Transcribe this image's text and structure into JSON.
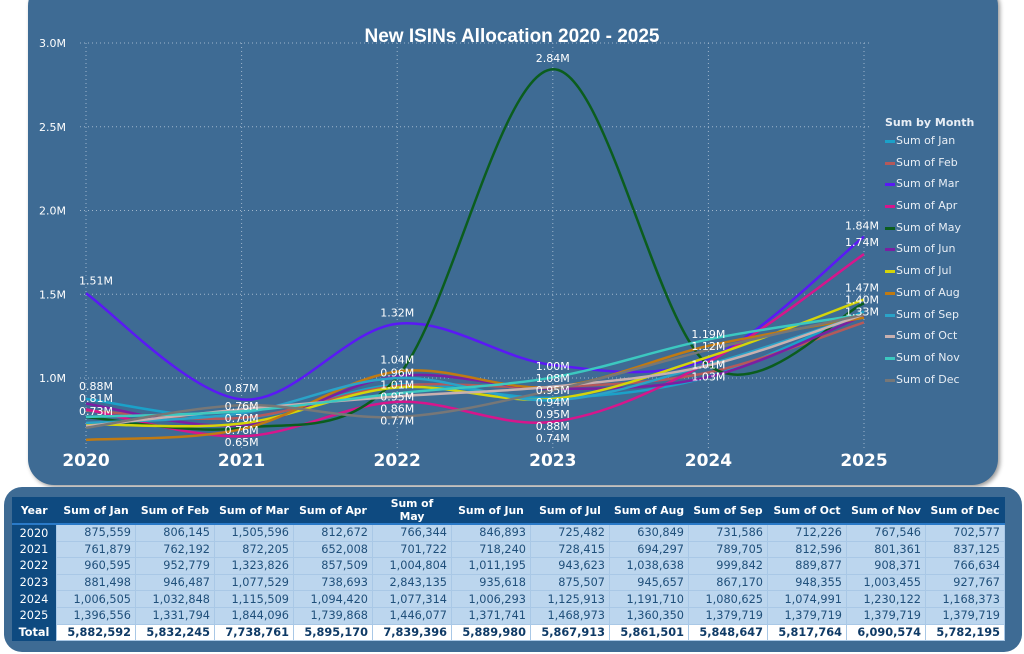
{
  "chart_data": {
    "type": "line",
    "title": "New ISINs Allocation 2020 - 2025",
    "x": [
      "2020",
      "2021",
      "2022",
      "2023",
      "2024",
      "2025"
    ],
    "ylim": [
      0.6,
      3.0
    ],
    "yticks": [
      "1.0M",
      "1.5M",
      "2.0M",
      "2.5M",
      "3.0M"
    ],
    "ytick_values": [
      1.0,
      1.5,
      2.0,
      2.5,
      3.0
    ],
    "grid": true,
    "legend_title": "Sum by Month",
    "legend_position": "right",
    "series": [
      {
        "name": "Sum of Jan",
        "color": "#1ba1c9",
        "values": [
          875559,
          761879,
          960595,
          881498,
          1006505,
          1396556
        ]
      },
      {
        "name": "Sum of Feb",
        "color": "#b4595a",
        "values": [
          806145,
          762192,
          952779,
          946487,
          1032848,
          1331794
        ]
      },
      {
        "name": "Sum of Mar",
        "color": "#5a19f5",
        "values": [
          1505596,
          872205,
          1323826,
          1077529,
          1115509,
          1844096
        ]
      },
      {
        "name": "Sum of Apr",
        "color": "#d6168c",
        "values": [
          812672,
          652008,
          857509,
          738693,
          1094420,
          1739868
        ]
      },
      {
        "name": "Sum of May",
        "color": "#0b5d1e",
        "values": [
          766344,
          701722,
          1004804,
          2843135,
          1077314,
          1446077
        ]
      },
      {
        "name": "Sum of Jun",
        "color": "#7b1fa2",
        "values": [
          846893,
          718240,
          1011195,
          935618,
          1006293,
          1371741
        ]
      },
      {
        "name": "Sum of Jul",
        "color": "#d4d40a",
        "values": [
          725482,
          728415,
          943623,
          875507,
          1125913,
          1468973
        ]
      },
      {
        "name": "Sum of Aug",
        "color": "#c07a12",
        "values": [
          630849,
          694297,
          1038638,
          945657,
          1191710,
          1360350
        ]
      },
      {
        "name": "Sum of Sep",
        "color": "#2aa3c8",
        "values": [
          731586,
          789705,
          999842,
          867170,
          1080625,
          1379719
        ]
      },
      {
        "name": "Sum of Oct",
        "color": "#c8b0b0",
        "values": [
          712226,
          812596,
          889877,
          948355,
          1074991,
          1379719
        ]
      },
      {
        "name": "Sum of Nov",
        "color": "#3cc8c0",
        "values": [
          767546,
          801361,
          908371,
          1003455,
          1230122,
          1379719
        ]
      },
      {
        "name": "Sum of Dec",
        "color": "#777777",
        "values": [
          702577,
          837125,
          766634,
          927767,
          1168373,
          1379719
        ]
      }
    ],
    "data_labels": [
      {
        "x": "2020",
        "text": "1.51M"
      },
      {
        "x": "2020",
        "text": "0.88M"
      },
      {
        "x": "2020",
        "text": "0.81M"
      },
      {
        "x": "2020",
        "text": "0.73M"
      },
      {
        "x": "2021",
        "text": "0.87M"
      },
      {
        "x": "2021",
        "text": "0.76M"
      },
      {
        "x": "2021",
        "text": "0.70M"
      },
      {
        "x": "2021",
        "text": "0.76M"
      },
      {
        "x": "2021",
        "text": "0.65M"
      },
      {
        "x": "2022",
        "text": "1.32M"
      },
      {
        "x": "2022",
        "text": "1.04M"
      },
      {
        "x": "2022",
        "text": "0.96M"
      },
      {
        "x": "2022",
        "text": "1.01M"
      },
      {
        "x": "2022",
        "text": "0.95M"
      },
      {
        "x": "2022",
        "text": "0.86M"
      },
      {
        "x": "2022",
        "text": "0.77M"
      },
      {
        "x": "2023",
        "text": "2.84M"
      },
      {
        "x": "2023",
        "text": "1.00M"
      },
      {
        "x": "2023",
        "text": "1.08M"
      },
      {
        "x": "2023",
        "text": "0.95M"
      },
      {
        "x": "2023",
        "text": "0.94M"
      },
      {
        "x": "2023",
        "text": "0.95M"
      },
      {
        "x": "2023",
        "text": "0.88M"
      },
      {
        "x": "2023",
        "text": "0.74M"
      },
      {
        "x": "2024",
        "text": "1.19M"
      },
      {
        "x": "2024",
        "text": "1.12M"
      },
      {
        "x": "2024",
        "text": "1.01M"
      },
      {
        "x": "2024",
        "text": "1.03M"
      },
      {
        "x": "2025",
        "text": "1.84M"
      },
      {
        "x": "2025",
        "text": "1.74M"
      },
      {
        "x": "2025",
        "text": "1.47M"
      },
      {
        "x": "2025",
        "text": "1.40M"
      },
      {
        "x": "2025",
        "text": "1.33M"
      }
    ]
  },
  "table": {
    "headers": [
      "Year",
      "Sum of Jan",
      "Sum of Feb",
      "Sum of Mar",
      "Sum of Apr",
      "Sum of May",
      "Sum of Jun",
      "Sum of Jul",
      "Sum of Aug",
      "Sum of Sep",
      "Sum of Oct",
      "Sum of Nov",
      "Sum of Dec"
    ],
    "rows": [
      [
        "2020",
        "875,559",
        "806,145",
        "1,505,596",
        "812,672",
        "766,344",
        "846,893",
        "725,482",
        "630,849",
        "731,586",
        "712,226",
        "767,546",
        "702,577"
      ],
      [
        "2021",
        "761,879",
        "762,192",
        "872,205",
        "652,008",
        "701,722",
        "718,240",
        "728,415",
        "694,297",
        "789,705",
        "812,596",
        "801,361",
        "837,125"
      ],
      [
        "2022",
        "960,595",
        "952,779",
        "1,323,826",
        "857,509",
        "1,004,804",
        "1,011,195",
        "943,623",
        "1,038,638",
        "999,842",
        "889,877",
        "908,371",
        "766,634"
      ],
      [
        "2023",
        "881,498",
        "946,487",
        "1,077,529",
        "738,693",
        "2,843,135",
        "935,618",
        "875,507",
        "945,657",
        "867,170",
        "948,355",
        "1,003,455",
        "927,767"
      ],
      [
        "2024",
        "1,006,505",
        "1,032,848",
        "1,115,509",
        "1,094,420",
        "1,077,314",
        "1,006,293",
        "1,125,913",
        "1,191,710",
        "1,080,625",
        "1,074,991",
        "1,230,122",
        "1,168,373"
      ],
      [
        "2025",
        "1,396,556",
        "1,331,794",
        "1,844,096",
        "1,739,868",
        "1,446,077",
        "1,371,741",
        "1,468,973",
        "1,360,350",
        "1,379,719",
        "1,379,719",
        "1,379,719",
        "1,379,719"
      ]
    ],
    "total": [
      "Total",
      "5,882,592",
      "5,832,245",
      "7,738,761",
      "5,895,170",
      "7,839,396",
      "5,889,980",
      "5,867,913",
      "5,861,501",
      "5,848,647",
      "5,817,764",
      "6,090,574",
      "5,782,195"
    ]
  }
}
